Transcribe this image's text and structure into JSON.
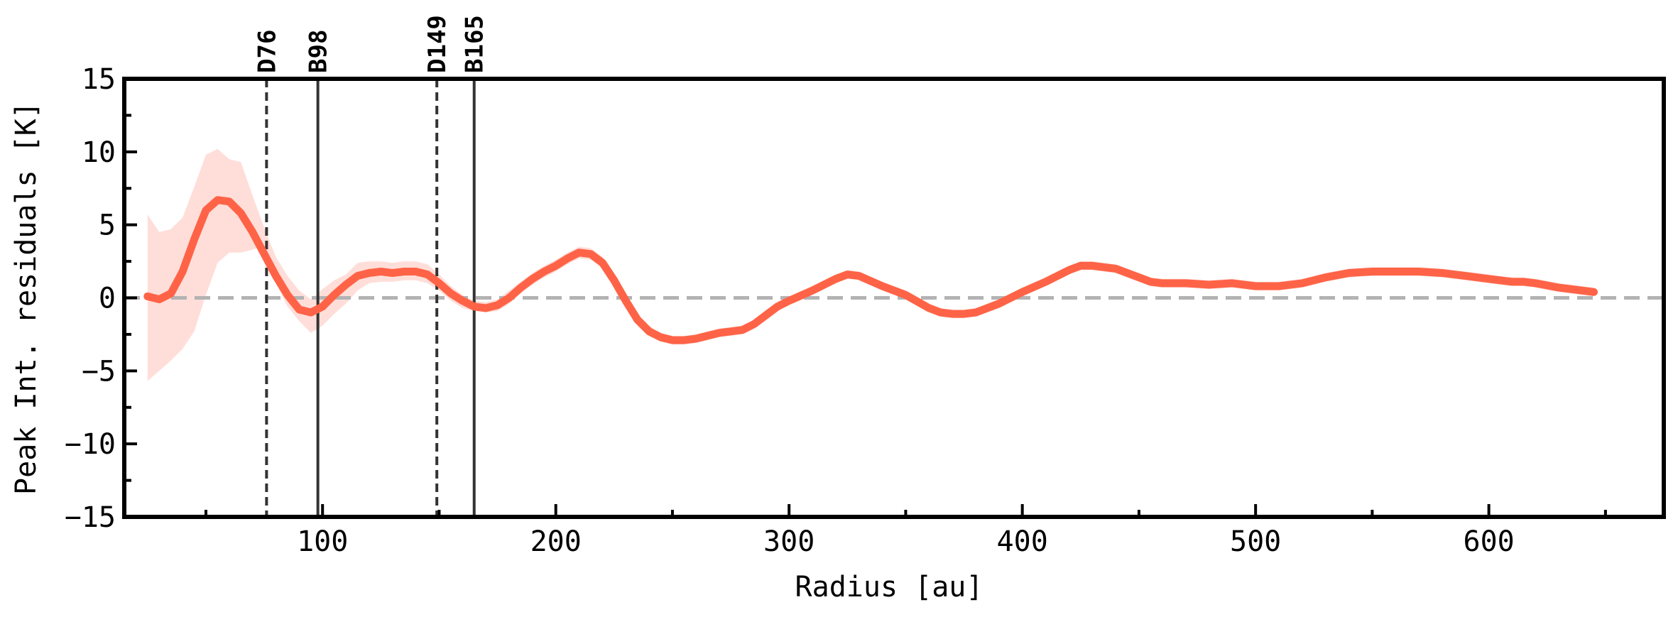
{
  "chart_data": {
    "type": "line",
    "xlabel": "Radius [au]",
    "ylabel": "Peak Int. residuals [K]",
    "xlim": [
      15,
      675
    ],
    "ylim": [
      -15,
      15
    ],
    "xticks": [
      100,
      200,
      300,
      400,
      500,
      600
    ],
    "yticks": [
      -15,
      -10,
      -5,
      0,
      5,
      10,
      15
    ],
    "grid": false,
    "legend": "none",
    "colors": {
      "line": "#ff6347",
      "band": "#ffd6cf",
      "zero_line": "#b3b3b3",
      "marker": "#333333"
    },
    "zero_line": {
      "y": 0,
      "style": "dashed"
    },
    "markers": [
      {
        "label": "D76",
        "x": 76,
        "style": "dashed"
      },
      {
        "label": "B98",
        "x": 98,
        "style": "solid"
      },
      {
        "label": "D149",
        "x": 149,
        "style": "dashed"
      },
      {
        "label": "B165",
        "x": 165,
        "style": "solid"
      }
    ],
    "series": [
      {
        "x": [
          25,
          30,
          35,
          40,
          45,
          50,
          55,
          60,
          65,
          70,
          75,
          80,
          85,
          90,
          95,
          100,
          105,
          110,
          115,
          120,
          125,
          130,
          135,
          140,
          145,
          150,
          155,
          160,
          165,
          170,
          175,
          180,
          185,
          190,
          195,
          200,
          205,
          210,
          215,
          220,
          225,
          230,
          235,
          240,
          245,
          250,
          255,
          260,
          265,
          270,
          275,
          280,
          285,
          290,
          295,
          300,
          310,
          320,
          325,
          330,
          340,
          350,
          360,
          365,
          370,
          375,
          380,
          390,
          400,
          410,
          420,
          425,
          430,
          440,
          450,
          455,
          460,
          470,
          480,
          490,
          500,
          510,
          520,
          530,
          540,
          550,
          560,
          570,
          580,
          590,
          600,
          610,
          615,
          620,
          630,
          640,
          645
        ],
        "y": [
          0.1,
          -0.1,
          0.3,
          1.8,
          4.0,
          6.0,
          6.7,
          6.6,
          5.8,
          4.5,
          3.0,
          1.5,
          0.2,
          -0.8,
          -1.0,
          -0.6,
          0.2,
          0.9,
          1.5,
          1.7,
          1.8,
          1.7,
          1.8,
          1.8,
          1.6,
          1.0,
          0.3,
          -0.2,
          -0.6,
          -0.7,
          -0.5,
          0.0,
          0.7,
          1.3,
          1.8,
          2.2,
          2.7,
          3.1,
          3.0,
          2.4,
          1.2,
          -0.2,
          -1.5,
          -2.3,
          -2.7,
          -2.9,
          -2.9,
          -2.8,
          -2.6,
          -2.4,
          -2.3,
          -2.2,
          -1.8,
          -1.2,
          -0.6,
          -0.2,
          0.5,
          1.3,
          1.6,
          1.5,
          0.8,
          0.2,
          -0.7,
          -1.0,
          -1.1,
          -1.1,
          -1.0,
          -0.4,
          0.4,
          1.1,
          1.9,
          2.2,
          2.2,
          2.0,
          1.4,
          1.1,
          1.0,
          1.0,
          0.9,
          1.0,
          0.8,
          0.8,
          1.0,
          1.4,
          1.7,
          1.8,
          1.8,
          1.8,
          1.7,
          1.5,
          1.3,
          1.1,
          1.1,
          1.0,
          0.7,
          0.5,
          0.4
        ],
        "band_lower": [
          -5.7,
          -5.0,
          -4.3,
          -3.5,
          -2.3,
          0.2,
          2.4,
          3.1,
          3.1,
          3.3,
          3.6,
          1.0,
          -0.6,
          -1.6,
          -2.4,
          -1.9,
          -1.1,
          -0.4,
          0.5,
          1.0,
          1.1,
          1.1,
          1.2,
          1.2,
          1.0,
          0.5,
          -0.2,
          -0.7,
          -0.9,
          -1.0,
          -0.9,
          -0.4,
          0.3,
          0.9,
          1.4,
          1.8,
          2.3,
          2.7,
          2.6,
          2.0,
          0.8,
          -0.6,
          -1.9,
          -2.6,
          -3.0,
          -3.2,
          -3.2,
          -3.1,
          -2.9,
          -2.7,
          -2.6,
          -2.5,
          -2.1,
          -1.5,
          -0.9,
          -0.5,
          0.2,
          1.0,
          1.3,
          1.2,
          0.5,
          -0.1,
          -1.0,
          -1.3,
          -1.4,
          -1.4,
          -1.3,
          -0.7,
          0.1,
          0.8,
          1.6,
          1.9,
          1.9,
          1.7,
          1.1,
          0.8,
          0.7,
          0.7,
          0.6,
          0.7,
          0.5,
          0.5,
          0.7,
          1.1,
          1.4,
          1.5,
          1.5,
          1.5,
          1.4,
          1.2,
          1.0,
          0.8,
          0.8,
          0.7,
          0.4,
          0.2,
          0.1
        ],
        "band_upper": [
          5.7,
          4.5,
          4.7,
          5.5,
          7.6,
          9.8,
          10.2,
          9.5,
          9.3,
          7.0,
          4.8,
          2.8,
          1.5,
          0.5,
          -0.1,
          0.6,
          1.2,
          1.6,
          2.4,
          2.5,
          2.5,
          2.4,
          2.5,
          2.5,
          2.3,
          1.6,
          0.8,
          0.2,
          -0.2,
          -0.3,
          -0.1,
          0.5,
          1.1,
          1.7,
          2.2,
          2.6,
          3.1,
          3.5,
          3.4,
          2.8,
          1.6,
          0.2,
          -1.1,
          -1.9,
          -2.4,
          -2.6,
          -2.6,
          -2.5,
          -2.3,
          -2.1,
          -2.0,
          -1.9,
          -1.5,
          -0.9,
          -0.3,
          0.1,
          0.8,
          1.6,
          1.9,
          1.8,
          1.1,
          0.5,
          -0.4,
          -0.7,
          -0.8,
          -0.8,
          -0.7,
          -0.1,
          0.7,
          1.4,
          2.2,
          2.5,
          2.5,
          2.3,
          1.7,
          1.4,
          1.3,
          1.3,
          1.2,
          1.3,
          1.1,
          1.1,
          1.3,
          1.7,
          2.0,
          2.1,
          2.1,
          2.1,
          2.0,
          1.8,
          1.6,
          1.4,
          1.4,
          1.3,
          1.0,
          0.8,
          0.7
        ]
      }
    ]
  }
}
